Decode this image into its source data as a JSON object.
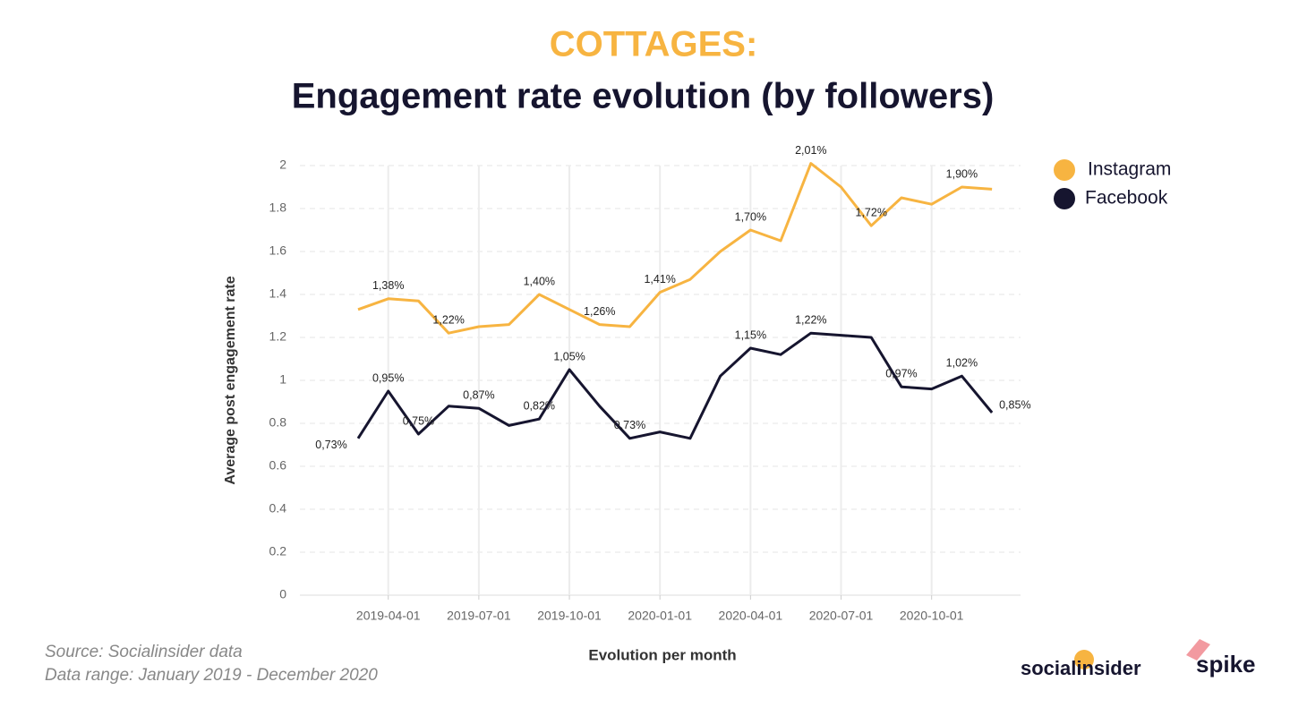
{
  "chart_data": {
    "type": "line",
    "title": "COTTAGES:",
    "subtitle": "Engagement rate evolution (by followers)",
    "y_label": "Average post engagement rate",
    "x_label": "Evolution per month",
    "categories": [
      null,
      "2019-04-01",
      null,
      null,
      "2019-07-01",
      null,
      null,
      "2019-10-01",
      null,
      null,
      "2020-01-01",
      null,
      null,
      "2020-04-01",
      null,
      null,
      "2020-07-01",
      null,
      null,
      "2020-10-01",
      null,
      null
    ],
    "series": [
      {
        "name": "Instagram",
        "color": "#f7b441",
        "values": [
          1.33,
          1.38,
          1.37,
          1.22,
          1.25,
          1.26,
          1.4,
          1.33,
          1.26,
          1.25,
          1.41,
          1.47,
          1.6,
          1.7,
          1.65,
          2.01,
          1.9,
          1.72,
          1.85,
          1.82,
          1.9,
          1.89
        ],
        "value_labels": [
          null,
          "1,38%",
          null,
          "1,22%",
          null,
          null,
          "1,40%",
          null,
          "1,26%",
          null,
          "1,41%",
          null,
          null,
          "1,70%",
          null,
          "2,01%",
          null,
          "1,72%",
          null,
          null,
          "1,90%",
          null
        ]
      },
      {
        "name": "Facebook",
        "color": "#16152f",
        "values": [
          0.73,
          0.95,
          0.75,
          0.88,
          0.87,
          0.79,
          0.82,
          1.05,
          0.88,
          0.73,
          0.76,
          0.73,
          1.02,
          1.15,
          1.12,
          1.22,
          1.21,
          1.2,
          0.97,
          0.96,
          1.02,
          0.85
        ],
        "value_labels": [
          "0,73%",
          "0,95%",
          "0,75%",
          null,
          "0,87%",
          null,
          "0,82%",
          "1,05%",
          null,
          "0,73%",
          null,
          null,
          null,
          "1,15%",
          null,
          "1,22%",
          null,
          null,
          "0,97%",
          null,
          "1,02%",
          "0,85%"
        ]
      }
    ],
    "ylim": [
      0,
      2
    ],
    "yticks": [
      0,
      0.2,
      0.4,
      0.6,
      0.8,
      1,
      1.2,
      1.4,
      1.6,
      1.8,
      2
    ],
    "grid": true,
    "legend": "top-right",
    "source": "Source: Socialinsider data",
    "range": "Data range: January 2019 - December 2020",
    "logos": [
      "socialinsider",
      "spike"
    ]
  }
}
